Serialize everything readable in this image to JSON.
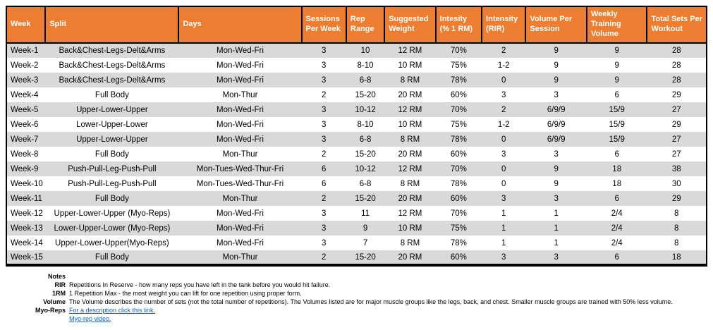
{
  "colors": {
    "header_bg": "#ED7D31",
    "header_text": "#FFFFFF",
    "stripe": "#D9D9D9",
    "border": "#000000",
    "link": "#0563C1"
  },
  "table": {
    "columns": [
      "Week",
      "Split",
      "Days",
      "Sessions Per Week",
      "Rep Range",
      "Suggested Weight",
      "Intesity (% 1 RM)",
      "Intensity (RIR)",
      "Volume Per Session",
      "Weekly Training Volume",
      "Total Sets Per Workout"
    ],
    "rows": [
      [
        "Week-1",
        "Back&Chest-Legs-Delt&Arms",
        "Mon-Wed-Fri",
        "3",
        "10",
        "12 RM",
        "70%",
        "2",
        "9",
        "9",
        "28"
      ],
      [
        "Week-2",
        "Back&Chest-Legs-Delt&Arms",
        "Mon-Wed-Fri",
        "3",
        "8-10",
        "10 RM",
        "75%",
        "1-2",
        "9",
        "9",
        "28"
      ],
      [
        "Week-3",
        "Back&Chest-Legs-Delt&Arms",
        "Mon-Wed-Fri",
        "3",
        "6-8",
        "8 RM",
        "78%",
        "0",
        "9",
        "9",
        "28"
      ],
      [
        "Week-4",
        "Full Body",
        "Mon-Thur",
        "2",
        "15-20",
        "20 RM",
        "60%",
        "3",
        "3",
        "6",
        "29"
      ],
      [
        "Week-5",
        "Upper-Lower-Upper",
        "Mon-Wed-Fri",
        "3",
        "10-12",
        "12 RM",
        "70%",
        "2",
        "6/9/9",
        "15/9",
        "27"
      ],
      [
        "Week-6",
        "Lower-Upper-Lower",
        "Mon-Wed-Fri",
        "3",
        "8-10",
        "10 RM",
        "75%",
        "1-2",
        "6/9/9",
        "15/9",
        "29"
      ],
      [
        "Week-7",
        "Upper-Lower-Upper",
        "Mon-Wed-Fri",
        "3",
        "6-8",
        "8 RM",
        "78%",
        "0",
        "6/9/9",
        "15/9",
        "27"
      ],
      [
        "Week-8",
        "Full Body",
        "Mon-Thur",
        "2",
        "15-20",
        "20 RM",
        "60%",
        "3",
        "3",
        "6",
        "27"
      ],
      [
        "Week-9",
        "Push-Pull-Leg-Push-Pull",
        "Mon-Tues-Wed-Thur-Fri",
        "6",
        "10-12",
        "12 RM",
        "70%",
        "0",
        "9",
        "18",
        "38"
      ],
      [
        "Week-10",
        "Push-Pull-Leg-Push-Pull",
        "Mon-Tues-Wed-Thur-Fri",
        "6",
        "6-8",
        "8 RM",
        "78%",
        "0",
        "9",
        "18",
        "30"
      ],
      [
        "Week-11",
        "Full Body",
        "Mon-Thur",
        "2",
        "15-20",
        "20 RM",
        "60%",
        "3",
        "3",
        "6",
        "29"
      ],
      [
        "Week-12",
        "Upper-Lower-Upper (Myo-Reps)",
        "Mon-Wed-Fri",
        "3",
        "11",
        "12 RM",
        "70%",
        "1",
        "1",
        "2/4",
        "8"
      ],
      [
        "Week-13",
        "Lower-Upper-Lower (Myo-Reps)",
        "Mon-Wed-Fri",
        "3",
        "9",
        "10 RM",
        "75%",
        "1",
        "1",
        "2/4",
        "8"
      ],
      [
        "Week-14",
        "Upper-Lower-Upper(Myo-Reps)",
        "Mon-Wed-Fri",
        "3",
        "7",
        "8 RM",
        "78%",
        "1",
        "1",
        "2/4",
        "8"
      ],
      [
        "Week-15",
        "Full Body",
        "Mon-Thur",
        "2",
        "15-20",
        "20 RM",
        "60%",
        "3",
        "3",
        "6",
        "18"
      ]
    ]
  },
  "notes": {
    "title": "Notes",
    "items": [
      {
        "label": "RIR",
        "text": "Repetitions In Reserve - how many reps you have left in the tank before you would hit failure.",
        "link": false
      },
      {
        "label": "1RM",
        "text": "1 Repetition Max - the most weight you can lift for one repetition using proper form.",
        "link": false
      },
      {
        "label": "Volume",
        "text": "The Volume describes the number of sets (not the total number of repetitions). The Volumes listed are for major muscle groups like the legs, back, and chest. Smaller muscle groups are trained with 50% less volume.",
        "link": false
      },
      {
        "label": "Myo-Reps",
        "text": "For a description click this link.",
        "link": true
      },
      {
        "label": "",
        "text": "Myo-rep video.",
        "link": true
      }
    ]
  }
}
